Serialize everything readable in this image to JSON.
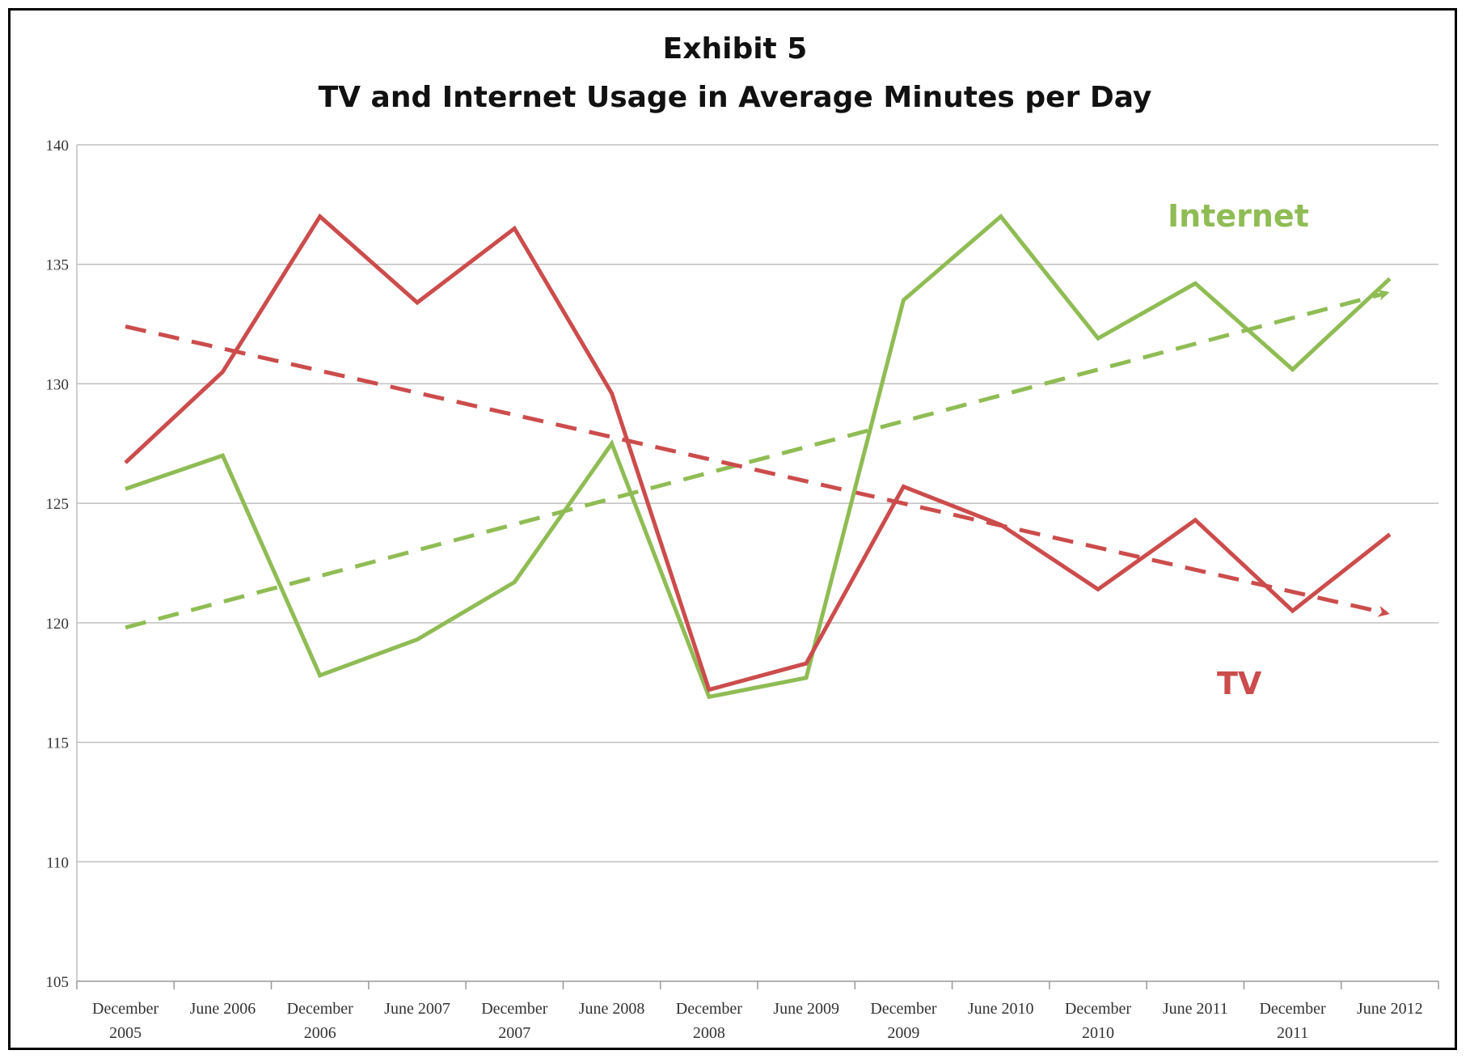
{
  "chart_data": {
    "type": "line",
    "title": "Exhibit 5",
    "subtitle": "TV and Internet Usage in Average Minutes per Day",
    "xlabel": "",
    "ylabel": "",
    "ylim": [
      105,
      140
    ],
    "yticks": [
      105,
      110,
      115,
      120,
      125,
      130,
      135,
      140
    ],
    "grid": true,
    "legend": "none",
    "categories": [
      [
        "December",
        "2005"
      ],
      [
        "June 2006"
      ],
      [
        "December",
        "2006"
      ],
      [
        "June 2007"
      ],
      [
        "December",
        "2007"
      ],
      [
        "June 2008"
      ],
      [
        "December",
        "2008"
      ],
      [
        "June 2009"
      ],
      [
        "December",
        "2009"
      ],
      [
        "June 2010"
      ],
      [
        "December",
        "2010"
      ],
      [
        "June 2011"
      ],
      [
        "December",
        "2011"
      ],
      [
        "June 2012"
      ]
    ],
    "series": [
      {
        "name": "Internet",
        "color": "#8fbc54",
        "values": [
          125.6,
          127.0,
          117.8,
          119.3,
          121.7,
          127.5,
          116.9,
          117.7,
          133.5,
          137.0,
          131.9,
          134.2,
          130.6,
          134.4
        ],
        "trend": {
          "start": 119.8,
          "end": 133.8,
          "style": "dashed",
          "arrow": true
        }
      },
      {
        "name": "TV",
        "color": "#cc4c4c",
        "values": [
          126.7,
          130.5,
          137.0,
          133.4,
          136.5,
          129.6,
          117.2,
          118.3,
          125.7,
          124.1,
          121.4,
          124.3,
          120.5,
          123.7
        ],
        "trend": {
          "start": 132.4,
          "end": 120.4,
          "style": "dashed",
          "arrow": true
        }
      }
    ]
  }
}
